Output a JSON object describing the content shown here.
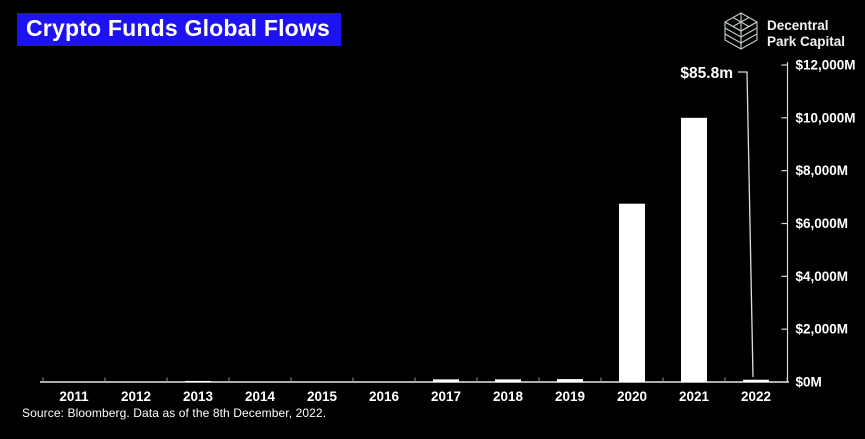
{
  "header": {
    "title": "Crypto Funds Global Flows",
    "logo": {
      "icon": "cube-wireframe-icon",
      "line1": "Decentral",
      "line2": "Park Capital"
    }
  },
  "chart_data": {
    "type": "bar",
    "title": "Crypto Funds Global Flows",
    "unit": "USD millions",
    "categories": [
      "2011",
      "2012",
      "2013",
      "2014",
      "2015",
      "2016",
      "2017",
      "2018",
      "2019",
      "2020",
      "2021",
      "2022"
    ],
    "values": [
      0,
      0,
      40,
      0,
      0,
      0,
      100,
      100,
      110,
      6750,
      10000,
      85.8
    ],
    "ylim": [
      0,
      12000
    ],
    "yticks": [
      {
        "value": 0,
        "label": "$0M"
      },
      {
        "value": 2000,
        "label": "$2,000M"
      },
      {
        "value": 4000,
        "label": "$4,000M"
      },
      {
        "value": 6000,
        "label": "$6,000M"
      },
      {
        "value": 8000,
        "label": "$8,000M"
      },
      {
        "value": 10000,
        "label": "$10,000M"
      },
      {
        "value": 12000,
        "label": "$12,000M"
      }
    ],
    "yaxis_side": "right",
    "grid": false,
    "legend": false,
    "bar_color": "#ffffff",
    "background": "#000000",
    "annotation": {
      "label": "$85.8m",
      "category": "2022"
    }
  },
  "footer": {
    "source": "Source: Bloomberg. Data as of the 8th December, 2022."
  },
  "colors": {
    "accent_blue": "#1d12f2",
    "axis": "#e8e8e8",
    "text": "#ffffff"
  }
}
